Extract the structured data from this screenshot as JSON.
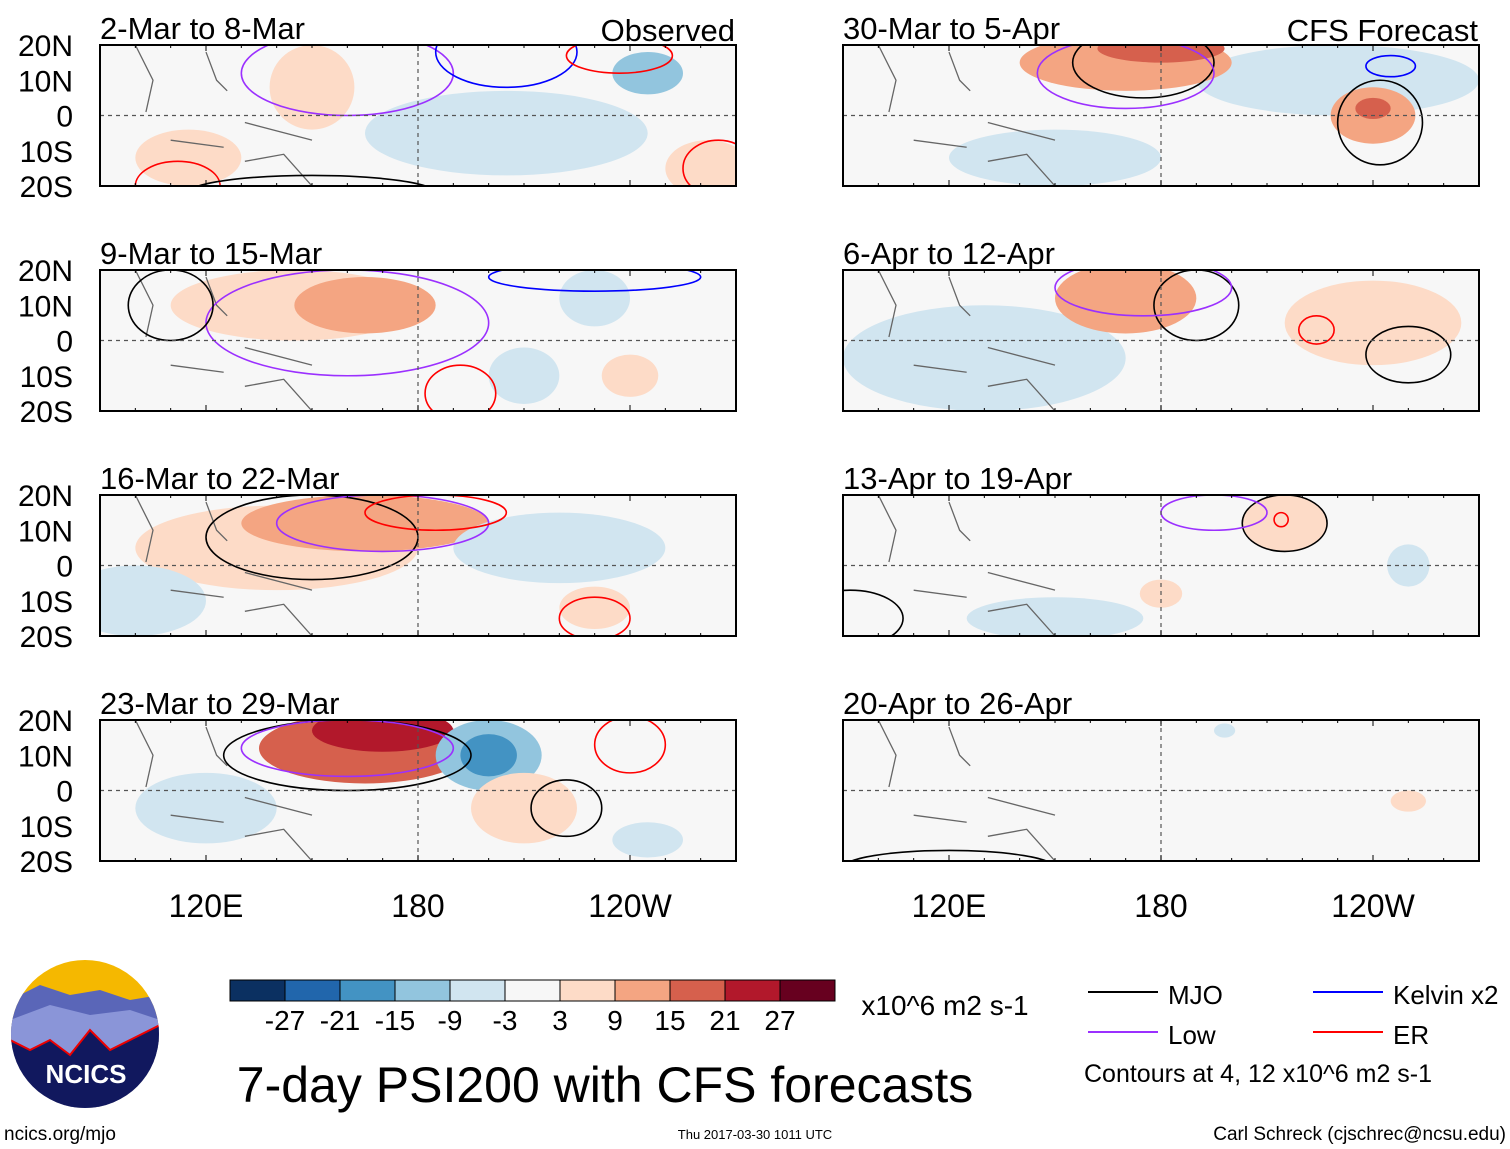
{
  "chart_data": {
    "type": "heatmap",
    "title": "7-day PSI200 with CFS forecasts",
    "column_labels": [
      "Observed",
      "CFS Forecast"
    ],
    "lat_ticks": [
      "20N",
      "10N",
      "0",
      "10S",
      "20S"
    ],
    "lat_tick_values": [
      20,
      10,
      0,
      -10,
      -20
    ],
    "lon_ticks": [
      "120E",
      "180",
      "120W"
    ],
    "lon_tick_values": [
      120,
      180,
      240
    ],
    "lon_range": [
      90,
      270
    ],
    "lat_range": [
      -20,
      20
    ],
    "colorbar": {
      "levels": [
        "-27",
        "-21",
        "-15",
        "-9",
        "-3",
        "3",
        "9",
        "15",
        "21",
        "27"
      ],
      "level_values": [
        -27,
        -21,
        -15,
        -9,
        -3,
        3,
        9,
        15,
        21,
        27
      ],
      "colors": [
        "#0b3061",
        "#2166ac",
        "#4393c3",
        "#92c5de",
        "#d1e5f0",
        "#f7f7f7",
        "#fddbc7",
        "#f4a582",
        "#d6604d",
        "#b2182b",
        "#67001f"
      ],
      "units": "x10^6 m2 s-1"
    },
    "legend": [
      {
        "label": "MJO",
        "color": "#000000"
      },
      {
        "label": "Kelvin x2",
        "color": "#0000ff"
      },
      {
        "label": "Low",
        "color": "#9b30ff"
      },
      {
        "label": "ER",
        "color": "#ff0000"
      }
    ],
    "contour_note": "Contours at 4, 12 x10^6 m2 s-1",
    "panels": [
      {
        "title": "2-Mar to 8-Mar",
        "column": 0,
        "row": 0,
        "anomalies": [
          {
            "lon": 150,
            "lat": 8,
            "rlon": 12,
            "rlat": 12,
            "value": 5
          },
          {
            "lon": 115,
            "lat": -12,
            "rlon": 15,
            "rlat": 8,
            "value": 5
          },
          {
            "lon": 205,
            "lat": -5,
            "rlon": 40,
            "rlat": 12,
            "value": -5
          },
          {
            "lon": 245,
            "lat": 12,
            "rlon": 10,
            "rlat": 6,
            "value": -10
          },
          {
            "lon": 262,
            "lat": -15,
            "rlon": 12,
            "rlat": 8,
            "value": 5
          }
        ],
        "contours": [
          {
            "type": "Low",
            "lon": 160,
            "lat": 12,
            "rlon": 30,
            "rlat": 12
          },
          {
            "type": "Kelvin x2",
            "lon": 205,
            "lat": 18,
            "rlon": 20,
            "rlat": 10
          },
          {
            "type": "ER",
            "lon": 237,
            "lat": 17,
            "rlon": 15,
            "rlat": 5
          },
          {
            "type": "ER",
            "lon": 265,
            "lat": -15,
            "rlon": 10,
            "rlat": 8
          },
          {
            "type": "ER",
            "lon": 112,
            "lat": -20,
            "rlon": 12,
            "rlat": 7
          },
          {
            "type": "MJO",
            "lon": 150,
            "lat": -22,
            "rlon": 35,
            "rlat": 5
          }
        ]
      },
      {
        "title": "9-Mar to 15-Mar",
        "column": 0,
        "row": 1,
        "anomalies": [
          {
            "lon": 145,
            "lat": 10,
            "rlon": 35,
            "rlat": 10,
            "value": 5
          },
          {
            "lon": 165,
            "lat": 10,
            "rlon": 20,
            "rlat": 8,
            "value": 10
          },
          {
            "lon": 230,
            "lat": 12,
            "rlon": 10,
            "rlat": 8,
            "value": -8
          },
          {
            "lon": 210,
            "lat": -10,
            "rlon": 10,
            "rlat": 8,
            "value": -5
          },
          {
            "lon": 240,
            "lat": -10,
            "rlon": 8,
            "rlat": 6,
            "value": 5
          }
        ],
        "contours": [
          {
            "type": "Low",
            "lon": 160,
            "lat": 5,
            "rlon": 40,
            "rlat": 15
          },
          {
            "type": "ER",
            "lon": 192,
            "lat": -15,
            "rlon": 10,
            "rlat": 8
          },
          {
            "type": "MJO",
            "lon": 110,
            "lat": 10,
            "rlon": 12,
            "rlat": 10
          },
          {
            "type": "Kelvin x2",
            "lon": 230,
            "lat": 18,
            "rlon": 30,
            "rlat": 4
          }
        ]
      },
      {
        "title": "16-Mar to 22-Mar",
        "column": 0,
        "row": 2,
        "anomalies": [
          {
            "lon": 140,
            "lat": 5,
            "rlon": 40,
            "rlat": 12,
            "value": 5
          },
          {
            "lon": 165,
            "lat": 12,
            "rlon": 35,
            "rlat": 8,
            "value": 12
          },
          {
            "lon": 100,
            "lat": -10,
            "rlon": 20,
            "rlat": 10,
            "value": -5
          },
          {
            "lon": 220,
            "lat": 5,
            "rlon": 30,
            "rlat": 10,
            "value": -5
          },
          {
            "lon": 230,
            "lat": -12,
            "rlon": 10,
            "rlat": 6,
            "value": 5
          }
        ],
        "contours": [
          {
            "type": "MJO",
            "lon": 150,
            "lat": 8,
            "rlon": 30,
            "rlat": 12
          },
          {
            "type": "Low",
            "lon": 170,
            "lat": 12,
            "rlon": 30,
            "rlat": 8
          },
          {
            "type": "ER",
            "lon": 185,
            "lat": 15,
            "rlon": 20,
            "rlat": 5
          },
          {
            "type": "ER",
            "lon": 230,
            "lat": -15,
            "rlon": 10,
            "rlat": 6
          }
        ]
      },
      {
        "title": "23-Mar to 29-Mar",
        "column": 0,
        "row": 3,
        "anomalies": [
          {
            "lon": 120,
            "lat": -5,
            "rlon": 20,
            "rlat": 10,
            "value": -5
          },
          {
            "lon": 165,
            "lat": 12,
            "rlon": 30,
            "rlat": 10,
            "value": 16
          },
          {
            "lon": 170,
            "lat": 17,
            "rlon": 20,
            "rlat": 6,
            "value": 22
          },
          {
            "lon": 200,
            "lat": 10,
            "rlon": 15,
            "rlat": 10,
            "value": -10
          },
          {
            "lon": 200,
            "lat": 10,
            "rlon": 8,
            "rlat": 6,
            "value": -16
          },
          {
            "lon": 210,
            "lat": -5,
            "rlon": 15,
            "rlat": 10,
            "value": 5
          },
          {
            "lon": 245,
            "lat": -14,
            "rlon": 10,
            "rlat": 5,
            "value": -8
          }
        ],
        "contours": [
          {
            "type": "MJO",
            "lon": 160,
            "lat": 10,
            "rlon": 35,
            "rlat": 10
          },
          {
            "type": "Low",
            "lon": 160,
            "lat": 12,
            "rlon": 30,
            "rlat": 8
          },
          {
            "type": "MJO",
            "lon": 222,
            "lat": -5,
            "rlon": 10,
            "rlat": 8
          },
          {
            "type": "ER",
            "lon": 240,
            "lat": 13,
            "rlon": 10,
            "rlat": 8
          }
        ]
      },
      {
        "title": "30-Mar to 5-Apr",
        "column": 1,
        "row": 0,
        "anomalies": [
          {
            "lon": 150,
            "lat": -12,
            "rlon": 30,
            "rlat": 8,
            "value": -5
          },
          {
            "lon": 230,
            "lat": 10,
            "rlon": 40,
            "rlat": 10,
            "value": -5
          },
          {
            "lon": 170,
            "lat": 15,
            "rlon": 30,
            "rlat": 8,
            "value": 12
          },
          {
            "lon": 180,
            "lat": 19,
            "rlon": 18,
            "rlat": 4,
            "value": 20
          },
          {
            "lon": 240,
            "lat": 0,
            "rlon": 12,
            "rlat": 8,
            "value": 10
          },
          {
            "lon": 240,
            "lat": 2,
            "rlon": 5,
            "rlat": 3,
            "value": 18
          }
        ],
        "contours": [
          {
            "type": "MJO",
            "lon": 175,
            "lat": 15,
            "rlon": 20,
            "rlat": 10
          },
          {
            "type": "MJO",
            "lon": 242,
            "lat": -2,
            "rlon": 12,
            "rlat": 12
          },
          {
            "type": "Kelvin x2",
            "lon": 245,
            "lat": 14,
            "rlon": 7,
            "rlat": 3
          },
          {
            "type": "Low",
            "lon": 170,
            "lat": 12,
            "rlon": 25,
            "rlat": 10
          }
        ]
      },
      {
        "title": "6-Apr to 12-Apr",
        "column": 1,
        "row": 1,
        "anomalies": [
          {
            "lon": 130,
            "lat": -5,
            "rlon": 40,
            "rlat": 15,
            "value": -5
          },
          {
            "lon": 170,
            "lat": 12,
            "rlon": 20,
            "rlat": 10,
            "value": 10
          },
          {
            "lon": 240,
            "lat": 5,
            "rlon": 25,
            "rlat": 12,
            "value": 5
          }
        ],
        "contours": [
          {
            "type": "MJO",
            "lon": 190,
            "lat": 10,
            "rlon": 12,
            "rlat": 10
          },
          {
            "type": "MJO",
            "lon": 250,
            "lat": -4,
            "rlon": 12,
            "rlat": 8
          },
          {
            "type": "ER",
            "lon": 224,
            "lat": 3,
            "rlon": 5,
            "rlat": 4
          },
          {
            "type": "Low",
            "lon": 175,
            "lat": 15,
            "rlon": 25,
            "rlat": 8
          }
        ]
      },
      {
        "title": "13-Apr to 19-Apr",
        "column": 1,
        "row": 2,
        "anomalies": [
          {
            "lon": 215,
            "lat": 12,
            "rlon": 12,
            "rlat": 8,
            "value": 5
          },
          {
            "lon": 250,
            "lat": 0,
            "rlon": 6,
            "rlat": 6,
            "value": -5
          },
          {
            "lon": 180,
            "lat": -8,
            "rlon": 6,
            "rlat": 4,
            "value": 5
          },
          {
            "lon": 150,
            "lat": -15,
            "rlon": 25,
            "rlat": 6,
            "value": -4
          }
        ],
        "contours": [
          {
            "type": "MJO",
            "lon": 215,
            "lat": 12,
            "rlon": 12,
            "rlat": 8
          },
          {
            "type": "ER",
            "lon": 214,
            "lat": 13,
            "rlon": 2,
            "rlat": 2
          },
          {
            "type": "Low",
            "lon": 195,
            "lat": 15,
            "rlon": 15,
            "rlat": 5
          },
          {
            "type": "MJO",
            "lon": 92,
            "lat": -15,
            "rlon": 15,
            "rlat": 8
          }
        ]
      },
      {
        "title": "20-Apr to 26-Apr",
        "column": 1,
        "row": 3,
        "anomalies": [
          {
            "lon": 198,
            "lat": 17,
            "rlon": 3,
            "rlat": 2,
            "value": -4
          },
          {
            "lon": 250,
            "lat": -3,
            "rlon": 5,
            "rlat": 3,
            "value": 4
          }
        ],
        "contours": [
          {
            "type": "MJO",
            "lon": 120,
            "lat": -22,
            "rlon": 30,
            "rlat": 5
          }
        ]
      }
    ]
  },
  "footer": {
    "logo_text": "NCICS",
    "url": "ncics.org/mjo",
    "timestamp": "Thu 2017-03-30 1011 UTC",
    "author": "Carl Schreck (cjschrec@ncsu.edu)"
  }
}
